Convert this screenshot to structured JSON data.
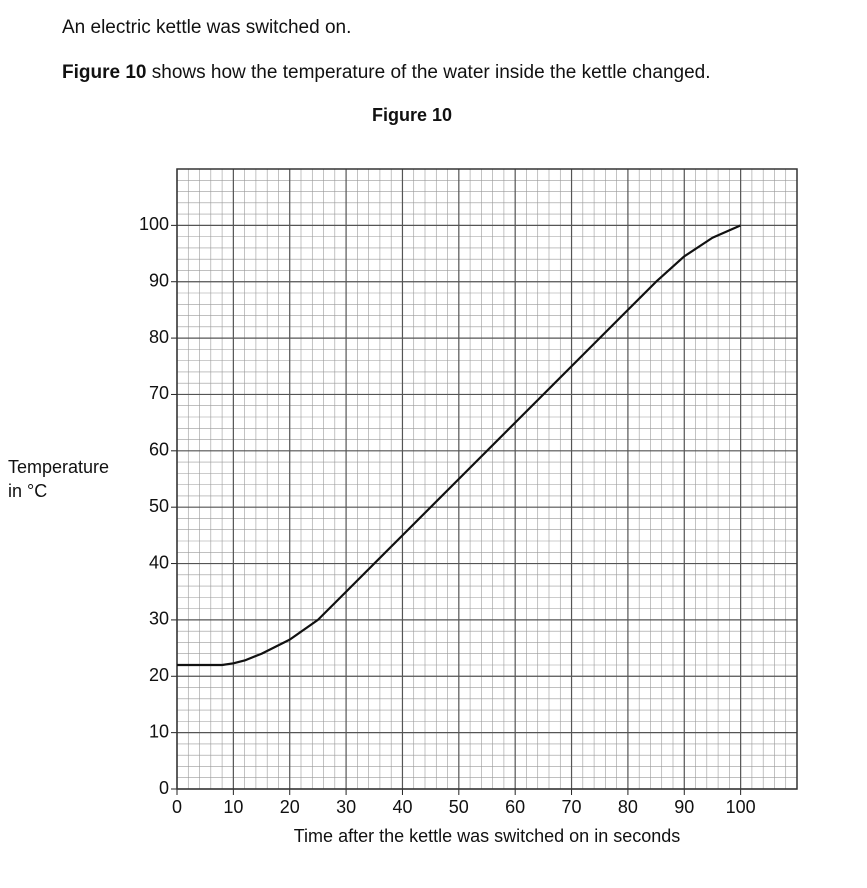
{
  "text": {
    "line1": "An electric kettle was switched on.",
    "line2_bold": "Figure 10",
    "line2_rest": "shows how the temperature of the water inside the kettle changed."
  },
  "chart_data": {
    "type": "line",
    "title": "Figure 10",
    "xlabel": "Time after the kettle was switched on in seconds",
    "ylabel": [
      "Temperature",
      "in °C"
    ],
    "x": [
      0,
      8,
      10,
      12,
      15,
      20,
      25,
      30,
      40,
      50,
      60,
      70,
      80,
      85,
      90,
      95,
      100
    ],
    "values": [
      22,
      22,
      22.3,
      22.8,
      24,
      26.5,
      30,
      35,
      45,
      55,
      65,
      75,
      85,
      90,
      94.5,
      97.8,
      100
    ],
    "color": "#111111",
    "xlim": [
      0,
      110
    ],
    "ylim": [
      0,
      110
    ],
    "xticks": [
      0,
      10,
      20,
      30,
      40,
      50,
      60,
      70,
      80,
      90,
      100
    ],
    "yticks": [
      0,
      10,
      20,
      30,
      40,
      50,
      60,
      70,
      80,
      90,
      100
    ],
    "grid": true
  }
}
